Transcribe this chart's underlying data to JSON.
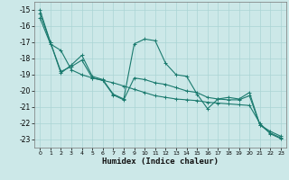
{
  "xlabel": "Humidex (Indice chaleur)",
  "xlim": [
    -0.5,
    23.5
  ],
  "ylim": [
    -23.5,
    -14.5
  ],
  "yticks": [
    -23,
    -22,
    -21,
    -20,
    -19,
    -18,
    -17,
    -16,
    -15
  ],
  "xticks": [
    0,
    1,
    2,
    3,
    4,
    5,
    6,
    7,
    8,
    9,
    10,
    11,
    12,
    13,
    14,
    15,
    16,
    17,
    18,
    19,
    20,
    21,
    22,
    23
  ],
  "bg_color": "#cce8e8",
  "line_color": "#1a7a6e",
  "grid_color": "#aad4d4",
  "series": [
    {
      "x": [
        0,
        1,
        2,
        3,
        4,
        5,
        6,
        7,
        8,
        9,
        10,
        11,
        12,
        13,
        14,
        15,
        16,
        17,
        18,
        19,
        20,
        21,
        22,
        23
      ],
      "y": [
        -15.0,
        -17.0,
        -18.9,
        -18.4,
        -17.8,
        -19.1,
        -19.3,
        -20.2,
        -20.5,
        -17.1,
        -16.8,
        -16.9,
        -18.3,
        -19.0,
        -19.1,
        -20.2,
        -21.1,
        -20.5,
        -20.4,
        -20.5,
        -20.1,
        -22.1,
        -22.5,
        -22.8
      ]
    },
    {
      "x": [
        0,
        1,
        2,
        3,
        4,
        5,
        6,
        7,
        8,
        9,
        10,
        11,
        12,
        13,
        14,
        15,
        16,
        17,
        18,
        19,
        20,
        21,
        22,
        23
      ],
      "y": [
        -15.2,
        -17.0,
        -18.8,
        -18.5,
        -18.1,
        -19.2,
        -19.35,
        -20.25,
        -20.55,
        -19.2,
        -19.3,
        -19.5,
        -19.6,
        -19.8,
        -20.0,
        -20.1,
        -20.4,
        -20.5,
        -20.55,
        -20.55,
        -20.3,
        -22.1,
        -22.6,
        -22.9
      ]
    },
    {
      "x": [
        0,
        1,
        2,
        3,
        4,
        5,
        6,
        7,
        8,
        9,
        10,
        11,
        12,
        13,
        14,
        15,
        16,
        17,
        18,
        19,
        20,
        21,
        22,
        23
      ],
      "y": [
        -15.5,
        -17.1,
        -17.5,
        -18.7,
        -19.0,
        -19.2,
        -19.35,
        -19.5,
        -19.7,
        -19.9,
        -20.1,
        -20.3,
        -20.4,
        -20.5,
        -20.55,
        -20.6,
        -20.7,
        -20.75,
        -20.8,
        -20.85,
        -20.9,
        -22.0,
        -22.65,
        -22.95
      ]
    }
  ],
  "marker": "+",
  "markersize": 3.5,
  "linewidth": 0.8
}
